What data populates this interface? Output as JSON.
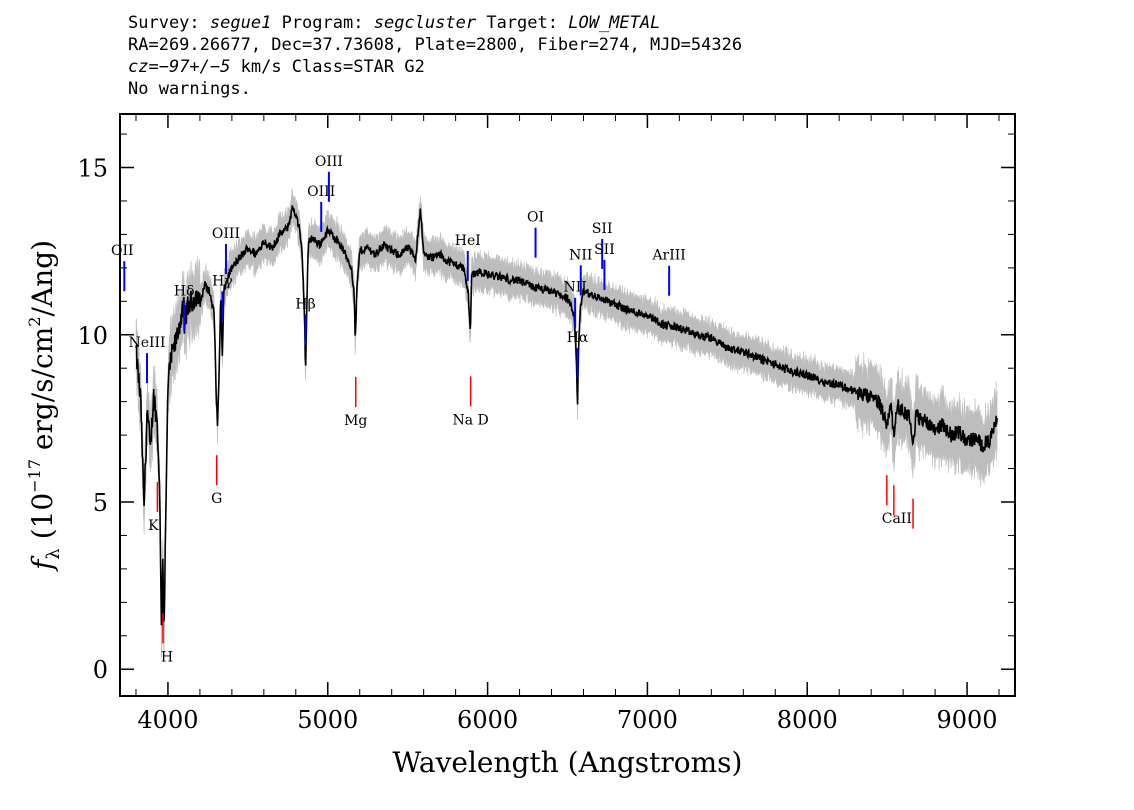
{
  "header": {
    "survey_label": "Survey:",
    "survey_value": "segue1",
    "program_label": "Program:",
    "program_value": "segcluster",
    "target_label": "Target:",
    "target_value": "LOW_METAL",
    "line2": "RA=269.26677, Dec=37.73608, Plate=2800, Fiber=274, MJD=54326",
    "cz_label": "cz",
    "cz_value": "=−97+/−5",
    "cz_unit": " km/s Class=STAR G2",
    "warnings": "No warnings."
  },
  "chart_data": {
    "type": "line",
    "xlabel": "Wavelength (Angstroms)",
    "ylabel_prefix": "f",
    "ylabel_sub": "λ",
    "ylabel_main": " (10",
    "ylabel_exp": "−17",
    "ylabel_mid": " erg/s/cm",
    "ylabel_exp2": "2",
    "ylabel_end": "/Ang)",
    "xlim": [
      3700,
      9300
    ],
    "ylim": [
      -0.8,
      16.6
    ],
    "x_ticks": [
      4000,
      5000,
      6000,
      7000,
      8000,
      9000
    ],
    "y_ticks": [
      0,
      5,
      10,
      15
    ],
    "series": [
      {
        "role": "flux",
        "color": "#000000",
        "x": [
          3800,
          3830,
          3850,
          3870,
          3890,
          3910,
          3930,
          3945,
          3955,
          3960,
          3968,
          3975,
          3985,
          4000,
          4020,
          4050,
          4080,
          4100,
          4102,
          4110,
          4130,
          4150,
          4180,
          4200,
          4230,
          4260,
          4290,
          4300,
          4310,
          4320,
          4330,
          4340,
          4350,
          4380,
          4400,
          4450,
          4500,
          4550,
          4600,
          4650,
          4700,
          4750,
          4780,
          4800,
          4820,
          4840,
          4855,
          4861,
          4870,
          4880,
          4900,
          4950,
          5000,
          5050,
          5100,
          5150,
          5167,
          5172,
          5183,
          5200,
          5250,
          5300,
          5350,
          5400,
          5450,
          5500,
          5550,
          5580,
          5600,
          5650,
          5700,
          5750,
          5800,
          5850,
          5880,
          5893,
          5900,
          5950,
          6000,
          6100,
          6200,
          6300,
          6400,
          6500,
          6540,
          6555,
          6563,
          6570,
          6580,
          6600,
          6700,
          6800,
          6900,
          7000,
          7100,
          7200,
          7300,
          7400,
          7500,
          7600,
          7700,
          7800,
          7900,
          8000,
          8100,
          8200,
          8300,
          8400,
          8450,
          8498,
          8520,
          8542,
          8560,
          8600,
          8640,
          8662,
          8680,
          8700,
          8750,
          8800,
          8850,
          8900,
          8950,
          9000,
          9050,
          9100,
          9150,
          9190
        ],
        "y": [
          9.5,
          8.0,
          4.8,
          7.8,
          6.5,
          8.2,
          7.5,
          6.0,
          3.0,
          1.0,
          3.5,
          1.2,
          4.0,
          8.5,
          9.3,
          9.8,
          10.5,
          10.8,
          9.8,
          10.6,
          10.9,
          11.0,
          11.2,
          10.9,
          11.5,
          11.3,
          10.6,
          8.5,
          7.3,
          8.8,
          11.2,
          9.3,
          11.3,
          11.8,
          12.0,
          12.3,
          12.6,
          12.4,
          12.8,
          12.6,
          13.0,
          13.2,
          13.8,
          13.6,
          13.2,
          12.4,
          10.5,
          8.8,
          11.2,
          12.8,
          12.9,
          12.7,
          13.1,
          12.9,
          12.5,
          12.0,
          11.0,
          9.8,
          11.4,
          12.5,
          12.6,
          12.4,
          12.7,
          12.5,
          12.4,
          12.6,
          12.3,
          13.8,
          12.4,
          12.3,
          12.4,
          12.2,
          12.1,
          12.0,
          11.2,
          10.0,
          11.8,
          11.9,
          11.8,
          11.7,
          11.6,
          11.4,
          11.3,
          11.1,
          10.6,
          9.3,
          7.8,
          9.8,
          10.8,
          11.3,
          11.1,
          10.9,
          10.7,
          10.6,
          10.3,
          10.2,
          10.0,
          9.9,
          9.6,
          9.5,
          9.3,
          9.1,
          8.9,
          8.8,
          8.6,
          8.5,
          8.3,
          8.1,
          8.0,
          7.3,
          8.0,
          7.0,
          7.9,
          7.7,
          7.6,
          6.6,
          7.6,
          7.5,
          7.4,
          7.2,
          7.3,
          7.0,
          7.1,
          6.8,
          6.9,
          6.7,
          6.9,
          7.5
        ]
      }
    ],
    "emission_lines": [
      {
        "name": "OII",
        "x": 3727
      },
      {
        "name": "NeIII",
        "x": 3869
      },
      {
        "name": "Hδ",
        "x": 4102
      },
      {
        "name": "Hγ",
        "x": 4341
      },
      {
        "name": "OIII",
        "x": 4363
      },
      {
        "name": "Hβ",
        "x": 4861
      },
      {
        "name": "OIII",
        "x": 4959
      },
      {
        "name": "OIII",
        "x": 5007
      },
      {
        "name": "HeI",
        "x": 5876
      },
      {
        "name": "OI",
        "x": 6300
      },
      {
        "name": "NII",
        "x": 6548
      },
      {
        "name": "Hα",
        "x": 6563
      },
      {
        "name": "NII",
        "x": 6583
      },
      {
        "name": "SII",
        "x": 6717
      },
      {
        "name": "SII",
        "x": 6731
      },
      {
        "name": "ArIII",
        "x": 7136
      }
    ],
    "absorption_lines": [
      {
        "name": "K",
        "x": 3934
      },
      {
        "name": "H",
        "x": 3969
      },
      {
        "name": "G",
        "x": 4305
      },
      {
        "name": "Mg",
        "x": 5175
      },
      {
        "name": "Na D",
        "x": 5894
      },
      {
        "name": "CaII",
        "x": 8498
      },
      {
        "name": "CaII",
        "x": 8542
      },
      {
        "name": "CaII",
        "x": 8662
      }
    ],
    "colors": {
      "flux": "#000000",
      "error_band": "#bdbdbd",
      "emission": "#0000ff",
      "absorption": "#ff0000"
    }
  }
}
